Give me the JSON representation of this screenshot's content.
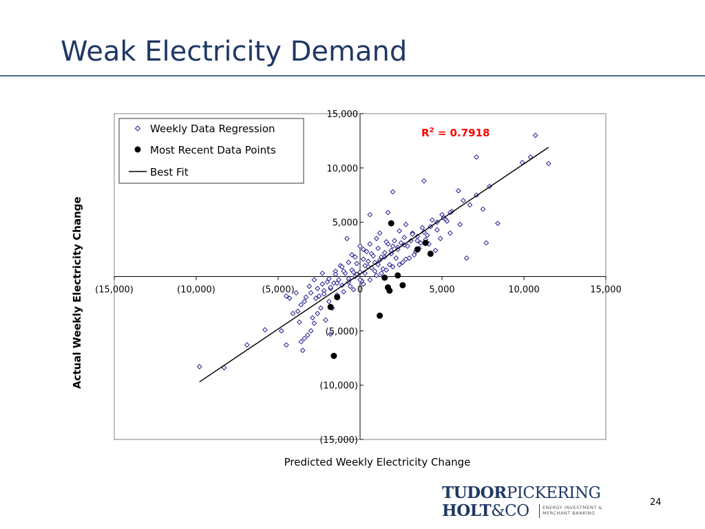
{
  "slide": {
    "title": "Weak Electricity Demand",
    "page_number": "24",
    "logo": {
      "line1_bold": "TUDOR",
      "line1_rest": "PICKERING",
      "line2_bold": "HOLT",
      "line2_rest": "&CO",
      "tagline": "ENERGY INVESTMENT &\nMERCHANT BANKING"
    }
  },
  "colors": {
    "title": "#1f3864",
    "regression_points": "#1f1f8f",
    "recent_points": "#000000",
    "fit_line": "#000000",
    "r2_annotation": "#ff0000"
  },
  "chart_data": {
    "type": "scatter",
    "xlabel": "Predicted Weekly Electricity Change",
    "ylabel": "Actual Weekly Electricity Change",
    "xlim": [
      -15000,
      15000
    ],
    "ylim": [
      -15000,
      15000
    ],
    "x_ticks": [
      -15000,
      -10000,
      -5000,
      0,
      5000,
      10000,
      15000
    ],
    "y_ticks": [
      -15000,
      -10000,
      -5000,
      0,
      5000,
      10000,
      15000
    ],
    "x_tick_labels": [
      "(15,000)",
      "(10,000)",
      "(5,000)",
      "0",
      "5,000",
      "10,000",
      "15,000"
    ],
    "y_tick_labels": [
      "(15,000)",
      "(10,000)",
      "(5,000)",
      "0",
      "5,000",
      "10,000",
      "15,000"
    ],
    "annotation": {
      "prefix": "R",
      "superscript": "2",
      "suffix": " = 0.7918"
    },
    "legend": {
      "position": "top-left",
      "entries": [
        "Weekly Data Regression",
        "Most Recent Data Points",
        "Best Fit"
      ]
    },
    "best_fit": {
      "x": [
        -9800,
        11500
      ],
      "y": [
        -9700,
        11900
      ]
    },
    "series": [
      {
        "name": "Weekly Data Regression",
        "marker": "diamond",
        "points": [
          [
            -9800,
            -8300
          ],
          [
            -8300,
            -8400
          ],
          [
            -6900,
            -6300
          ],
          [
            -5800,
            -4900
          ],
          [
            -4800,
            -5000
          ],
          [
            -4500,
            -6300
          ],
          [
            -3600,
            -6000
          ],
          [
            -3500,
            -6800
          ],
          [
            -3400,
            -5700
          ],
          [
            -3200,
            -5400
          ],
          [
            -3000,
            -5000
          ],
          [
            -2800,
            -4300
          ],
          [
            -2600,
            -3400
          ],
          [
            -2400,
            -2900
          ],
          [
            -3600,
            -2600
          ],
          [
            -3300,
            -1900
          ],
          [
            -3400,
            -2300
          ],
          [
            -3800,
            -3200
          ],
          [
            -4300,
            -2000
          ],
          [
            -4500,
            -1800
          ],
          [
            -3900,
            -1500
          ],
          [
            -3100,
            -900
          ],
          [
            -2800,
            -300
          ],
          [
            -2300,
            300
          ],
          [
            -1800,
            -1100
          ],
          [
            -1600,
            -600
          ],
          [
            -1300,
            -300
          ],
          [
            -1100,
            -800
          ],
          [
            -900,
            300
          ],
          [
            -700,
            -200
          ],
          [
            -500,
            600
          ],
          [
            -300,
            0
          ],
          [
            -200,
            200
          ],
          [
            0,
            400
          ],
          [
            100,
            -400
          ],
          [
            300,
            1000
          ],
          [
            500,
            1400
          ],
          [
            700,
            2100
          ],
          [
            900,
            1300
          ],
          [
            1100,
            2600
          ],
          [
            1300,
            1800
          ],
          [
            1500,
            2200
          ],
          [
            1700,
            3000
          ],
          [
            1900,
            2400
          ],
          [
            2100,
            3300
          ],
          [
            2300,
            2700
          ],
          [
            2500,
            3100
          ],
          [
            2700,
            3600
          ],
          [
            2900,
            2800
          ],
          [
            3200,
            4000
          ],
          [
            3500,
            3300
          ],
          [
            3800,
            4500
          ],
          [
            4100,
            3800
          ],
          [
            4400,
            5200
          ],
          [
            4700,
            4300
          ],
          [
            5000,
            5700
          ],
          [
            5300,
            5100
          ],
          [
            5600,
            6000
          ],
          [
            6300,
            7000
          ],
          [
            6700,
            6600
          ],
          [
            7100,
            7500
          ],
          [
            7500,
            6200
          ],
          [
            7900,
            8300
          ],
          [
            8400,
            4900
          ],
          [
            9900,
            10500
          ],
          [
            10400,
            11000
          ],
          [
            11500,
            10400
          ],
          [
            10700,
            13000
          ],
          [
            7100,
            11000
          ],
          [
            6000,
            7900
          ],
          [
            3900,
            8800
          ],
          [
            2000,
            7800
          ],
          [
            1700,
            5900
          ],
          [
            600,
            5700
          ],
          [
            5200,
            5300
          ],
          [
            6100,
            4800
          ],
          [
            6500,
            1700
          ],
          [
            7700,
            3100
          ],
          [
            -800,
            3500
          ],
          [
            -500,
            2000
          ],
          [
            0,
            2800
          ],
          [
            400,
            2300
          ],
          [
            800,
            1900
          ],
          [
            1200,
            1500
          ],
          [
            1400,
            700
          ],
          [
            2400,
            1100
          ],
          [
            2800,
            1600
          ],
          [
            3300,
            2000
          ],
          [
            3600,
            2600
          ],
          [
            4200,
            3000
          ],
          [
            4600,
            2400
          ],
          [
            4900,
            3500
          ],
          [
            5500,
            4000
          ],
          [
            -1200,
            1000
          ],
          [
            -1500,
            500
          ],
          [
            -2000,
            -500
          ],
          [
            -2200,
            -1300
          ],
          [
            -2500,
            -1800
          ],
          [
            -1900,
            -2300
          ],
          [
            -1700,
            -2900
          ],
          [
            -1400,
            -1700
          ],
          [
            -1000,
            -1400
          ],
          [
            -600,
            -900
          ],
          [
            -400,
            -1200
          ],
          [
            200,
            -700
          ],
          [
            600,
            -300
          ],
          [
            1000,
            100
          ],
          [
            1600,
            600
          ],
          [
            2000,
            900
          ],
          [
            2600,
            1300
          ],
          [
            3000,
            1700
          ],
          [
            3400,
            2300
          ],
          [
            3700,
            3100
          ],
          [
            4000,
            3400
          ],
          [
            -200,
            1200
          ],
          [
            200,
            1600
          ],
          [
            500,
            900
          ],
          [
            900,
            500
          ],
          [
            1300,
            300
          ],
          [
            1800,
            1100
          ],
          [
            2200,
            1700
          ],
          [
            -2900,
            -3800
          ],
          [
            -2100,
            -4000
          ],
          [
            -1800,
            -5300
          ],
          [
            -4100,
            -3400
          ],
          [
            -3700,
            -4200
          ],
          [
            -1000,
            500
          ],
          [
            -700,
            -500
          ],
          [
            -400,
            400
          ],
          [
            0,
            -300
          ],
          [
            300,
            300
          ],
          [
            700,
            800
          ],
          [
            1100,
            1100
          ],
          [
            1500,
            1800
          ],
          [
            1900,
            2100
          ],
          [
            2300,
            2500
          ],
          [
            2700,
            2900
          ],
          [
            3100,
            3300
          ],
          [
            3500,
            3700
          ],
          [
            3900,
            4100
          ],
          [
            4300,
            4600
          ],
          [
            4700,
            5000
          ],
          [
            5100,
            5400
          ],
          [
            5500,
            5900
          ],
          [
            -2700,
            -2000
          ],
          [
            -2200,
            -1600
          ],
          [
            -1800,
            -1000
          ],
          [
            -1400,
            -600
          ],
          [
            1200,
            4000
          ],
          [
            1600,
            3200
          ],
          [
            2000,
            2800
          ],
          [
            2400,
            4200
          ],
          [
            2800,
            4800
          ],
          [
            3200,
            3900
          ],
          [
            1000,
            3500
          ],
          [
            600,
            3000
          ],
          [
            200,
            2500
          ],
          [
            -300,
            1800
          ],
          [
            -700,
            1300
          ],
          [
            -1100,
            900
          ],
          [
            -1500,
            200
          ],
          [
            -1900,
            -200
          ],
          [
            -2300,
            -700
          ],
          [
            -2600,
            -1100
          ],
          [
            -3000,
            -1500
          ]
        ]
      },
      {
        "name": "Most Recent Data Points",
        "marker": "circle",
        "points": [
          [
            -1800,
            -2800
          ],
          [
            -1400,
            -1900
          ],
          [
            1200,
            -3600
          ],
          [
            1700,
            -1000
          ],
          [
            1800,
            -1300
          ],
          [
            1500,
            -100
          ],
          [
            2300,
            100
          ],
          [
            2600,
            -800
          ],
          [
            3500,
            2500
          ],
          [
            4000,
            3100
          ],
          [
            4300,
            2100
          ],
          [
            1900,
            4900
          ],
          [
            -1600,
            -7300
          ]
        ]
      }
    ]
  }
}
